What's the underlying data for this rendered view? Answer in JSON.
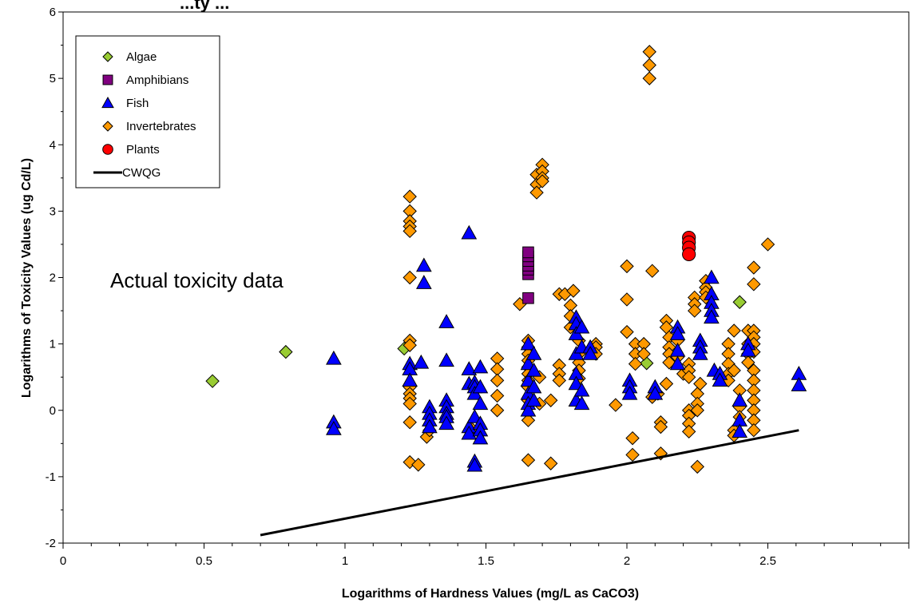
{
  "chart_data": {
    "type": "scatter",
    "title": "...ty ...",
    "xlabel": "Logarithms of Hardness Values (mg/L as CaCO3)",
    "ylabel": "Logarithms of Toxicity Values (ug Cd/L)",
    "xlim": [
      0,
      3
    ],
    "ylim": [
      -2,
      6
    ],
    "xticks": [
      0,
      0.5,
      1,
      1.5,
      2,
      2.5
    ],
    "xtick_labels": [
      "0",
      "0.5",
      "1",
      "1.5",
      "2",
      "2.5"
    ],
    "yticks": [
      -2,
      -1,
      0,
      1,
      2,
      3,
      4,
      5,
      6
    ],
    "ytick_labels": [
      "-2",
      "-1",
      "0",
      "1",
      "2",
      "3",
      "4",
      "5",
      "6"
    ],
    "grid": false,
    "legend_position": "top-left",
    "annotation": "Actual toxicity data",
    "series": [
      {
        "name": "Algae",
        "marker": "diamond",
        "color": "#99cc33",
        "points": [
          [
            0.53,
            0.44
          ],
          [
            0.79,
            0.88
          ],
          [
            1.21,
            0.93
          ],
          [
            2.07,
            0.71
          ],
          [
            2.4,
            1.63
          ]
        ]
      },
      {
        "name": "Amphibians",
        "marker": "square",
        "color": "#800080",
        "points": [
          [
            1.65,
            1.69
          ],
          [
            1.65,
            2.05
          ],
          [
            1.65,
            2.12
          ],
          [
            1.65,
            2.18
          ],
          [
            1.65,
            2.25
          ],
          [
            1.65,
            2.32
          ],
          [
            1.65,
            2.38
          ]
        ]
      },
      {
        "name": "Fish",
        "marker": "triangle",
        "color": "#0000ff",
        "points": [
          [
            0.96,
            0.78
          ],
          [
            0.96,
            -0.18
          ],
          [
            0.96,
            -0.28
          ],
          [
            1.23,
            0.7
          ],
          [
            1.23,
            0.62
          ],
          [
            1.23,
            0.45
          ],
          [
            1.27,
            0.72
          ],
          [
            1.28,
            1.92
          ],
          [
            1.28,
            2.18
          ],
          [
            1.3,
            0.05
          ],
          [
            1.3,
            -0.05
          ],
          [
            1.3,
            -0.15
          ],
          [
            1.3,
            -0.25
          ],
          [
            1.36,
            1.33
          ],
          [
            1.36,
            0.75
          ],
          [
            1.36,
            0.15
          ],
          [
            1.36,
            0.05
          ],
          [
            1.36,
            -0.05
          ],
          [
            1.36,
            -0.1
          ],
          [
            1.36,
            -0.2
          ],
          [
            1.44,
            2.67
          ],
          [
            1.44,
            0.62
          ],
          [
            1.44,
            0.4
          ],
          [
            1.44,
            -0.25
          ],
          [
            1.44,
            -0.35
          ],
          [
            1.46,
            0.42
          ],
          [
            1.46,
            0.35
          ],
          [
            1.46,
            0.25
          ],
          [
            1.46,
            -0.1
          ],
          [
            1.46,
            -0.77
          ],
          [
            1.46,
            -0.83
          ],
          [
            1.48,
            0.65
          ],
          [
            1.48,
            0.35
          ],
          [
            1.48,
            0.1
          ],
          [
            1.48,
            -0.2
          ],
          [
            1.48,
            -0.3
          ],
          [
            1.48,
            -0.42
          ],
          [
            1.65,
            1.0
          ],
          [
            1.65,
            0.7
          ],
          [
            1.65,
            0.45
          ],
          [
            1.65,
            0.25
          ],
          [
            1.65,
            0.1
          ],
          [
            1.65,
            0.0
          ],
          [
            1.67,
            0.85
          ],
          [
            1.67,
            0.6
          ],
          [
            1.67,
            0.35
          ],
          [
            1.67,
            0.15
          ],
          [
            1.82,
            1.4
          ],
          [
            1.82,
            1.3
          ],
          [
            1.82,
            1.15
          ],
          [
            1.82,
            0.85
          ],
          [
            1.82,
            0.55
          ],
          [
            1.82,
            0.4
          ],
          [
            1.82,
            0.15
          ],
          [
            1.84,
            1.25
          ],
          [
            1.84,
            0.95
          ],
          [
            1.84,
            0.3
          ],
          [
            1.84,
            0.1
          ],
          [
            1.87,
            0.95
          ],
          [
            1.87,
            0.85
          ],
          [
            2.01,
            0.45
          ],
          [
            2.01,
            0.35
          ],
          [
            2.01,
            0.25
          ],
          [
            2.1,
            0.35
          ],
          [
            2.1,
            0.25
          ],
          [
            2.18,
            1.25
          ],
          [
            2.18,
            1.15
          ],
          [
            2.18,
            0.9
          ],
          [
            2.18,
            0.7
          ],
          [
            2.26,
            1.05
          ],
          [
            2.26,
            0.95
          ],
          [
            2.26,
            0.85
          ],
          [
            2.3,
            2.0
          ],
          [
            2.3,
            1.75
          ],
          [
            2.3,
            1.62
          ],
          [
            2.3,
            1.5
          ],
          [
            2.3,
            1.4
          ],
          [
            2.31,
            0.6
          ],
          [
            2.33,
            0.55
          ],
          [
            2.33,
            0.45
          ],
          [
            2.4,
            0.15
          ],
          [
            2.4,
            -0.15
          ],
          [
            2.4,
            -0.32
          ],
          [
            2.43,
            1.0
          ],
          [
            2.43,
            0.9
          ],
          [
            2.61,
            0.55
          ],
          [
            2.61,
            0.38
          ]
        ]
      },
      {
        "name": "Invertebrates",
        "marker": "diamond",
        "color": "#ff9900",
        "points": [
          [
            1.23,
            3.22
          ],
          [
            1.23,
            3.0
          ],
          [
            1.23,
            2.85
          ],
          [
            1.23,
            2.77
          ],
          [
            1.23,
            2.7
          ],
          [
            1.23,
            2.0
          ],
          [
            1.23,
            1.05
          ],
          [
            1.23,
            0.98
          ],
          [
            1.23,
            0.35
          ],
          [
            1.23,
            0.25
          ],
          [
            1.23,
            0.18
          ],
          [
            1.23,
            0.1
          ],
          [
            1.23,
            -0.18
          ],
          [
            1.23,
            -0.78
          ],
          [
            1.26,
            -0.82
          ],
          [
            1.29,
            -0.4
          ],
          [
            1.3,
            -0.3
          ],
          [
            1.45,
            -0.28
          ],
          [
            1.54,
            0.78
          ],
          [
            1.54,
            0.62
          ],
          [
            1.54,
            0.45
          ],
          [
            1.54,
            0.22
          ],
          [
            1.54,
            0.0
          ],
          [
            1.62,
            1.6
          ],
          [
            1.65,
            1.05
          ],
          [
            1.65,
            0.95
          ],
          [
            1.65,
            0.85
          ],
          [
            1.65,
            0.75
          ],
          [
            1.65,
            0.65
          ],
          [
            1.65,
            0.55
          ],
          [
            1.65,
            0.45
          ],
          [
            1.65,
            0.35
          ],
          [
            1.65,
            0.15
          ],
          [
            1.65,
            -0.15
          ],
          [
            1.65,
            -0.75
          ],
          [
            1.68,
            3.55
          ],
          [
            1.68,
            3.4
          ],
          [
            1.68,
            3.28
          ],
          [
            1.7,
            3.7
          ],
          [
            1.7,
            3.6
          ],
          [
            1.7,
            3.5
          ],
          [
            1.7,
            3.45
          ],
          [
            1.69,
            0.5
          ],
          [
            1.69,
            0.1
          ],
          [
            1.73,
            -0.8
          ],
          [
            1.73,
            0.15
          ],
          [
            1.76,
            1.75
          ],
          [
            1.76,
            0.68
          ],
          [
            1.76,
            0.55
          ],
          [
            1.76,
            0.45
          ],
          [
            1.78,
            1.75
          ],
          [
            1.8,
            1.58
          ],
          [
            1.8,
            1.42
          ],
          [
            1.8,
            1.25
          ],
          [
            1.81,
            1.8
          ],
          [
            1.83,
            1.05
          ],
          [
            1.83,
            0.85
          ],
          [
            1.83,
            0.72
          ],
          [
            1.83,
            0.6
          ],
          [
            1.83,
            0.48
          ],
          [
            1.89,
            1.0
          ],
          [
            1.89,
            0.95
          ],
          [
            1.89,
            0.85
          ],
          [
            1.96,
            0.08
          ],
          [
            2.0,
            2.17
          ],
          [
            2.0,
            1.67
          ],
          [
            2.0,
            1.18
          ],
          [
            2.02,
            -0.42
          ],
          [
            2.02,
            -0.67
          ],
          [
            2.03,
            1.0
          ],
          [
            2.03,
            0.85
          ],
          [
            2.03,
            0.7
          ],
          [
            2.06,
            1.0
          ],
          [
            2.06,
            0.85
          ],
          [
            2.08,
            5.4
          ],
          [
            2.08,
            5.2
          ],
          [
            2.08,
            5.0
          ],
          [
            2.09,
            2.1
          ],
          [
            2.09,
            0.2
          ],
          [
            2.11,
            0.25
          ],
          [
            2.12,
            -0.18
          ],
          [
            2.12,
            -0.25
          ],
          [
            2.12,
            -0.65
          ],
          [
            2.14,
            0.4
          ],
          [
            2.14,
            1.35
          ],
          [
            2.14,
            1.25
          ],
          [
            2.15,
            1.1
          ],
          [
            2.15,
            0.95
          ],
          [
            2.15,
            0.85
          ],
          [
            2.15,
            0.72
          ],
          [
            2.18,
            1.05
          ],
          [
            2.18,
            0.8
          ],
          [
            2.2,
            0.55
          ],
          [
            2.22,
            0.7
          ],
          [
            2.22,
            0.6
          ],
          [
            2.22,
            0.5
          ],
          [
            2.22,
            0.0
          ],
          [
            2.22,
            -0.08
          ],
          [
            2.22,
            -0.2
          ],
          [
            2.22,
            -0.32
          ],
          [
            2.24,
            1.7
          ],
          [
            2.24,
            1.6
          ],
          [
            2.24,
            1.5
          ],
          [
            2.25,
            0.25
          ],
          [
            2.25,
            0.1
          ],
          [
            2.25,
            0.0
          ],
          [
            2.25,
            -0.85
          ],
          [
            2.26,
            0.4
          ],
          [
            2.28,
            1.95
          ],
          [
            2.28,
            1.85
          ],
          [
            2.28,
            1.78
          ],
          [
            2.28,
            1.7
          ],
          [
            2.36,
            1.0
          ],
          [
            2.36,
            0.85
          ],
          [
            2.36,
            0.7
          ],
          [
            2.36,
            0.55
          ],
          [
            2.36,
            0.45
          ],
          [
            2.38,
            1.2
          ],
          [
            2.38,
            0.6
          ],
          [
            2.38,
            -0.3
          ],
          [
            2.38,
            -0.38
          ],
          [
            2.4,
            0.3
          ],
          [
            2.4,
            0.05
          ],
          [
            2.4,
            -0.1
          ],
          [
            2.43,
            1.2
          ],
          [
            2.43,
            1.0
          ],
          [
            2.43,
            0.85
          ],
          [
            2.43,
            0.72
          ],
          [
            2.45,
            2.15
          ],
          [
            2.45,
            1.9
          ],
          [
            2.45,
            1.2
          ],
          [
            2.45,
            1.1
          ],
          [
            2.45,
            1.0
          ],
          [
            2.45,
            0.88
          ],
          [
            2.45,
            0.6
          ],
          [
            2.45,
            0.45
          ],
          [
            2.45,
            0.3
          ],
          [
            2.45,
            0.15
          ],
          [
            2.45,
            0.0
          ],
          [
            2.45,
            -0.15
          ],
          [
            2.45,
            -0.3
          ],
          [
            2.5,
            2.5
          ]
        ]
      },
      {
        "name": "Plants",
        "marker": "circle",
        "color": "#ff0000",
        "points": [
          [
            2.22,
            2.6
          ],
          [
            2.22,
            2.53
          ],
          [
            2.22,
            2.45
          ],
          [
            2.22,
            2.35
          ]
        ]
      },
      {
        "name": "CWQG",
        "marker": "line",
        "color": "#000000",
        "points": [
          [
            0.7,
            -1.88
          ],
          [
            2.61,
            -0.3
          ]
        ]
      }
    ]
  }
}
